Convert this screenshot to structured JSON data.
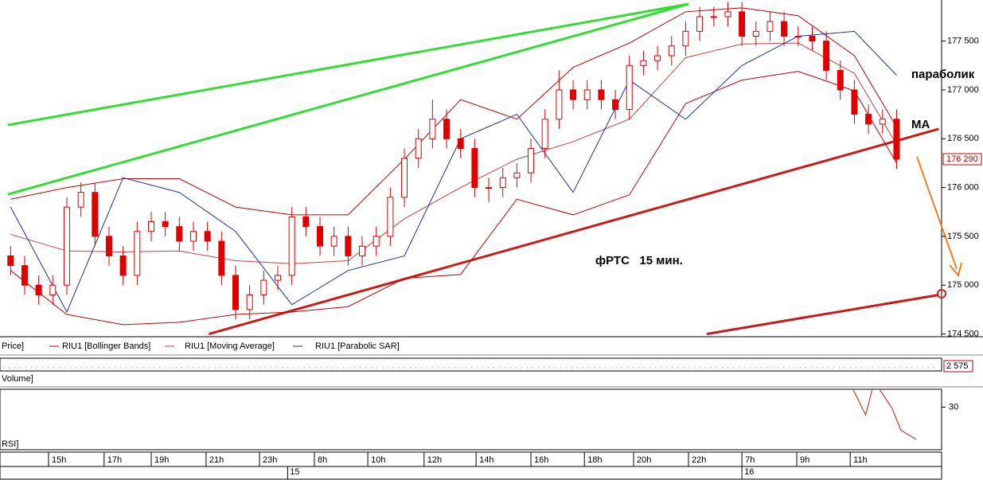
{
  "chart_data": {
    "type": "candlestick",
    "annotations": [
      "параболик",
      "МА",
      "фРТС   15 мин."
    ],
    "legend": [
      "Price]",
      "RIU1 [Bollinger Bands]",
      "RIU1 [Moving Average]",
      "RIU1 [Parabolic SAR]"
    ],
    "volume_label": "Volume]",
    "volume_last_label": "2 575",
    "rsi_label": "RSI]",
    "last_price_label": "176 290",
    "xlim": [
      -0.3,
      66.2
    ],
    "ylim": [
      174480,
      177880
    ],
    "yticks": [
      {
        "value": 177500,
        "label": "177 500"
      },
      {
        "value": 177000,
        "label": "177 000"
      },
      {
        "value": 176500,
        "label": "176 500"
      },
      {
        "value": 176000,
        "label": "176 000"
      },
      {
        "value": 175500,
        "label": "175 500"
      },
      {
        "value": 175000,
        "label": "175 000"
      },
      {
        "value": 174500,
        "label": "174 500"
      }
    ],
    "xticks": [
      {
        "value": 2.7,
        "label": "15h"
      },
      {
        "value": 6.65,
        "label": "17h"
      },
      {
        "value": 10.0,
        "label": "19h"
      },
      {
        "value": 13.9,
        "label": "21h"
      },
      {
        "value": 17.7,
        "label": "23h"
      },
      {
        "value": 21.6,
        "label": "8h"
      },
      {
        "value": 25.4,
        "label": "10h"
      },
      {
        "value": 29.4,
        "label": "12h"
      },
      {
        "value": 33.1,
        "label": "14h"
      },
      {
        "value": 37.0,
        "label": "16h"
      },
      {
        "value": 40.8,
        "label": "18h"
      },
      {
        "value": 44.3,
        "label": "20h"
      },
      {
        "value": 48.2,
        "label": "22h"
      },
      {
        "value": 52.0,
        "label": "7h"
      },
      {
        "value": 55.9,
        "label": "9h"
      },
      {
        "value": 59.7,
        "label": "11h"
      }
    ],
    "day_ticks": [
      {
        "value": 19.7,
        "label": "15"
      },
      {
        "value": 52.0,
        "label": "16"
      }
    ],
    "candle_color": "#e00000",
    "open": [
      175300,
      175200,
      175000,
      174900,
      175000,
      175800,
      175950,
      175500,
      175300,
      175100,
      175550,
      175650,
      175600,
      175450,
      175550,
      175450,
      175100,
      174750,
      174900,
      175050,
      175100,
      175700,
      175600,
      175400,
      175500,
      175300,
      175400,
      175500,
      175900,
      176300,
      176500,
      176700,
      176500,
      176400,
      176000,
      176000,
      176100,
      176150,
      176400,
      176700,
      177000,
      176900,
      177000,
      176900,
      176800,
      177250,
      177300,
      177350,
      177450,
      177600,
      177750,
      177750,
      177800,
      177550,
      177600,
      177700,
      177550,
      177550,
      177500,
      177200,
      177000,
      176750,
      176650,
      176700
    ],
    "high": [
      175400,
      175300,
      175100,
      175100,
      175900,
      176050,
      176050,
      175600,
      175400,
      175650,
      175750,
      175750,
      175700,
      175650,
      175650,
      175550,
      175200,
      175000,
      175150,
      175200,
      175800,
      175800,
      175700,
      175600,
      175600,
      175500,
      175600,
      176000,
      176400,
      176600,
      176900,
      176800,
      176600,
      176500,
      176100,
      176200,
      176250,
      176500,
      176800,
      177200,
      177100,
      177100,
      177100,
      177000,
      177350,
      177400,
      177450,
      177550,
      177700,
      177850,
      177850,
      177900,
      177900,
      177700,
      177800,
      177800,
      177650,
      177650,
      177600,
      177300,
      177100,
      176850,
      176800,
      176800
    ],
    "low": [
      175100,
      174900,
      174800,
      174800,
      174900,
      175700,
      175400,
      175200,
      175000,
      175000,
      175450,
      175500,
      175350,
      175350,
      175350,
      175000,
      174650,
      174650,
      174800,
      174950,
      175000,
      175500,
      175300,
      175300,
      175200,
      175200,
      175300,
      175400,
      175800,
      176200,
      176400,
      176400,
      176300,
      175900,
      175850,
      175900,
      176000,
      176050,
      176300,
      176600,
      176800,
      176800,
      176800,
      176700,
      176700,
      177150,
      177200,
      177250,
      177350,
      177500,
      177650,
      177650,
      177450,
      177450,
      177500,
      177450,
      177450,
      177400,
      177100,
      176900,
      176650,
      176550,
      176550,
      176190
    ],
    "close": [
      175200,
      175000,
      174900,
      175000,
      175800,
      175950,
      175500,
      175300,
      175100,
      175550,
      175650,
      175600,
      175450,
      175550,
      175450,
      175100,
      174750,
      174900,
      175050,
      175100,
      175700,
      175600,
      175400,
      175500,
      175300,
      175400,
      175500,
      175900,
      176300,
      176500,
      176700,
      176500,
      176400,
      176000,
      176000,
      176100,
      176150,
      176400,
      176700,
      177000,
      176900,
      177000,
      176900,
      176800,
      177250,
      177300,
      177350,
      177450,
      177600,
      177750,
      177750,
      177800,
      177550,
      177600,
      177700,
      177550,
      177550,
      177500,
      177200,
      177000,
      176750,
      176650,
      176700,
      176290
    ],
    "indicator_x": [
      0,
      4,
      8,
      12,
      16,
      20,
      24,
      28,
      32,
      36,
      40,
      44,
      48,
      52,
      56,
      60,
      63
    ],
    "series": [
      {
        "name": "Bollinger upper",
        "color": "#c00000",
        "values": [
          175880,
          176000,
          176090,
          176090,
          175800,
          175720,
          175720,
          176290,
          176900,
          176700,
          177230,
          177480,
          177800,
          177840,
          177760,
          177350,
          176620
        ]
      },
      {
        "name": "Bollinger lower",
        "color": "#c00000",
        "values": [
          175150,
          174700,
          174595,
          174620,
          174700,
          174725,
          174780,
          175070,
          175110,
          175880,
          175720,
          175925,
          176860,
          177100,
          177190,
          176990,
          176250
        ]
      },
      {
        "name": "Moving Average",
        "color": "#c84040",
        "values": [
          175520,
          175350,
          175340,
          175350,
          175250,
          175220,
          175250,
          175680,
          176000,
          176290,
          176470,
          176700,
          177330,
          177470,
          177480,
          177170,
          176440
        ]
      },
      {
        "name": "Parabolic SAR",
        "color": "#2030a0",
        "values": [
          175800,
          174725,
          176100,
          175950,
          175550,
          174800,
          175150,
          175300,
          176500,
          176750,
          175950,
          177100,
          176700,
          177250,
          177550,
          177600,
          177150
        ]
      }
    ],
    "trendlines": [
      {
        "color": "#33dd33",
        "x": [
          -0.2,
          48.2
        ],
        "y": [
          176640,
          177880
        ]
      },
      {
        "color": "#33dd33",
        "x": [
          -0.2,
          48.2
        ],
        "y": [
          175930,
          177880
        ]
      },
      {
        "color": "#cc1a1a",
        "x": [
          14.1,
          66.0
        ],
        "y": [
          174500,
          176600
        ]
      },
      {
        "color": "#cc1a1a",
        "x": [
          49.5,
          66.0
        ],
        "y": [
          174500,
          174900
        ]
      }
    ],
    "rsi_ylim": [
      20,
      34.2
    ],
    "rsi_yticks": [
      30
    ],
    "rsi_x": [
      59.9,
      60.8,
      61.3,
      61.7,
      62.7,
      63.3,
      64.4
    ],
    "rsi_values": [
      34.2,
      28.2,
      34.6,
      34.6,
      29.6,
      24.6,
      22.4
    ],
    "rsi_color": "#c04020"
  }
}
